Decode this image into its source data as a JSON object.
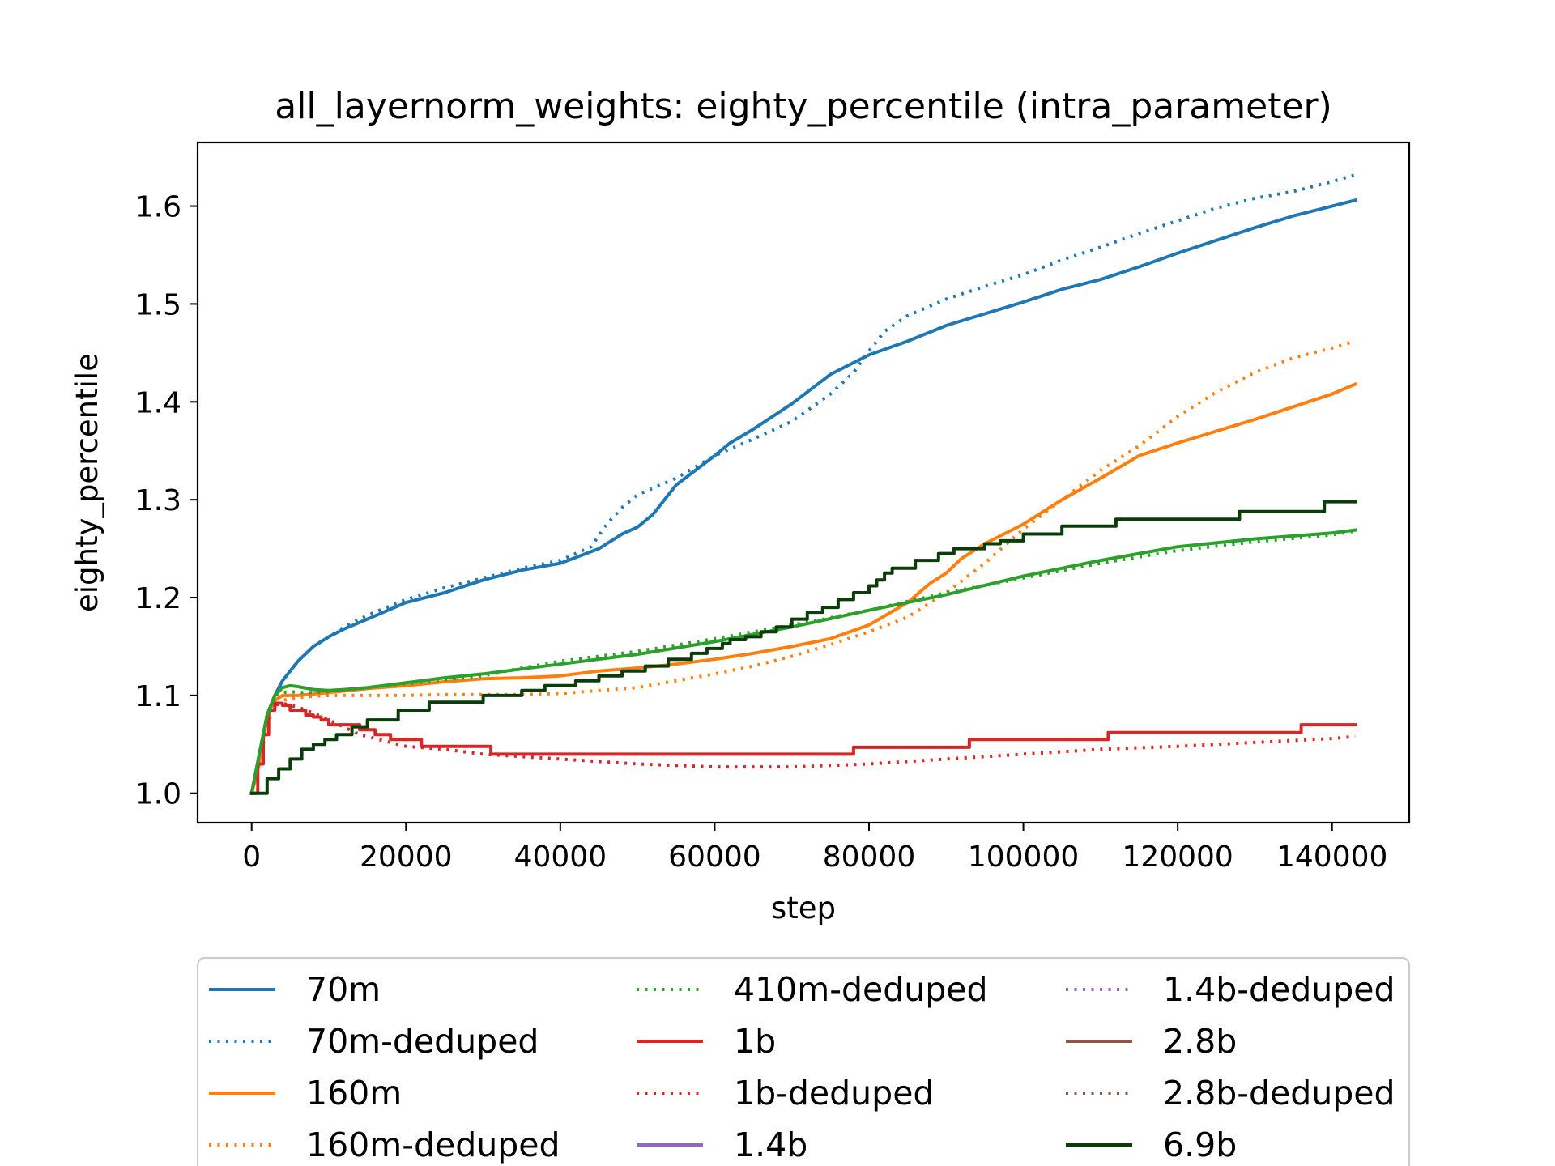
{
  "chart_data": {
    "type": "line",
    "title": "all_layernorm_weights: eighty_percentile (intra_parameter)",
    "xlabel": "step",
    "ylabel": "eighty_percentile",
    "xlim": [
      -7000,
      150000
    ],
    "ylim": [
      0.97,
      1.665
    ],
    "xticks": [
      0,
      20000,
      40000,
      60000,
      80000,
      100000,
      120000,
      140000
    ],
    "yticks": [
      1.0,
      1.1,
      1.2,
      1.3,
      1.4,
      1.5,
      1.6
    ],
    "ytick_labels": [
      "1.0",
      "1.1",
      "1.2",
      "1.3",
      "1.4",
      "1.5",
      "1.6"
    ],
    "grid": false,
    "legend_position": "bottom",
    "series": [
      {
        "name": "70m",
        "color": "#1f77b4",
        "style": "solid",
        "step": false,
        "x": [
          0,
          1000,
          2000,
          3000,
          4000,
          6000,
          8000,
          10000,
          12000,
          15000,
          20000,
          25000,
          30000,
          35000,
          40000,
          45000,
          48000,
          50000,
          52000,
          55000,
          60000,
          62000,
          65000,
          70000,
          75000,
          78000,
          80000,
          85000,
          90000,
          95000,
          100000,
          105000,
          110000,
          115000,
          120000,
          125000,
          130000,
          135000,
          140000,
          143000
        ],
        "y": [
          1.0,
          1.04,
          1.08,
          1.1,
          1.115,
          1.135,
          1.15,
          1.16,
          1.168,
          1.178,
          1.195,
          1.205,
          1.218,
          1.228,
          1.235,
          1.25,
          1.265,
          1.272,
          1.285,
          1.315,
          1.345,
          1.358,
          1.372,
          1.398,
          1.428,
          1.44,
          1.448,
          1.462,
          1.478,
          1.49,
          1.502,
          1.515,
          1.525,
          1.538,
          1.552,
          1.565,
          1.578,
          1.59,
          1.6,
          1.606
        ]
      },
      {
        "name": "70m-deduped",
        "color": "#1f77b4",
        "style": "dotted",
        "step": false,
        "x": [
          0,
          1000,
          2000,
          3000,
          4000,
          6000,
          8000,
          10000,
          12000,
          15000,
          20000,
          25000,
          30000,
          35000,
          40000,
          44000,
          46000,
          48000,
          50000,
          55000,
          60000,
          65000,
          70000,
          75000,
          78000,
          80000,
          82000,
          85000,
          90000,
          95000,
          100000,
          105000,
          110000,
          115000,
          120000,
          125000,
          130000,
          135000,
          140000,
          143000
        ],
        "y": [
          1.0,
          1.04,
          1.08,
          1.1,
          1.115,
          1.135,
          1.15,
          1.16,
          1.17,
          1.182,
          1.198,
          1.21,
          1.22,
          1.23,
          1.238,
          1.252,
          1.275,
          1.292,
          1.305,
          1.322,
          1.345,
          1.362,
          1.38,
          1.408,
          1.43,
          1.452,
          1.472,
          1.488,
          1.505,
          1.518,
          1.53,
          1.545,
          1.558,
          1.572,
          1.585,
          1.598,
          1.608,
          1.615,
          1.625,
          1.632
        ]
      },
      {
        "name": "160m",
        "color": "#ff7f0e",
        "style": "solid",
        "step": false,
        "x": [
          0,
          1000,
          2000,
          3000,
          4000,
          6000,
          10000,
          15000,
          20000,
          25000,
          30000,
          35000,
          40000,
          45000,
          50000,
          55000,
          60000,
          65000,
          70000,
          75000,
          80000,
          85000,
          88000,
          90000,
          92000,
          95000,
          100000,
          103000,
          105000,
          110000,
          115000,
          120000,
          125000,
          130000,
          135000,
          140000,
          143000
        ],
        "y": [
          1.0,
          1.03,
          1.08,
          1.095,
          1.1,
          1.1,
          1.103,
          1.107,
          1.11,
          1.114,
          1.117,
          1.118,
          1.12,
          1.125,
          1.128,
          1.132,
          1.137,
          1.143,
          1.15,
          1.158,
          1.172,
          1.195,
          1.215,
          1.225,
          1.24,
          1.255,
          1.275,
          1.29,
          1.3,
          1.322,
          1.345,
          1.358,
          1.37,
          1.382,
          1.395,
          1.408,
          1.418
        ]
      },
      {
        "name": "160m-deduped",
        "color": "#ff7f0e",
        "style": "dotted",
        "step": false,
        "x": [
          0,
          1000,
          2000,
          3000,
          4000,
          6000,
          10000,
          15000,
          20000,
          25000,
          30000,
          35000,
          40000,
          45000,
          50000,
          55000,
          60000,
          65000,
          70000,
          75000,
          80000,
          85000,
          90000,
          95000,
          100000,
          105000,
          110000,
          115000,
          120000,
          125000,
          130000,
          135000,
          140000,
          143000
        ],
        "y": [
          1.0,
          1.03,
          1.07,
          1.09,
          1.095,
          1.098,
          1.1,
          1.1,
          1.1,
          1.101,
          1.101,
          1.101,
          1.102,
          1.105,
          1.108,
          1.115,
          1.122,
          1.13,
          1.14,
          1.152,
          1.165,
          1.18,
          1.205,
          1.235,
          1.27,
          1.3,
          1.33,
          1.355,
          1.385,
          1.41,
          1.43,
          1.445,
          1.455,
          1.462
        ]
      },
      {
        "name": "410m-deduped",
        "color": "#2ca02c",
        "style": "dotted",
        "step": false,
        "x": [
          0,
          1000,
          2000,
          3000,
          4000,
          5000,
          6000,
          8000,
          10000,
          15000,
          20000,
          25000,
          30000,
          35000,
          40000,
          45000,
          50000,
          60000,
          70000,
          80000,
          90000,
          100000,
          110000,
          120000,
          130000,
          140000,
          143000
        ],
        "y": [
          1.0,
          1.04,
          1.08,
          1.1,
          1.103,
          1.104,
          1.103,
          1.103,
          1.104,
          1.108,
          1.112,
          1.116,
          1.12,
          1.128,
          1.135,
          1.14,
          1.145,
          1.158,
          1.172,
          1.187,
          1.205,
          1.22,
          1.235,
          1.248,
          1.257,
          1.264,
          1.268
        ]
      },
      {
        "name": "1b",
        "color": "#d62728",
        "style": "solid",
        "step": true,
        "x": [
          0,
          800,
          1500,
          2200,
          3000,
          4000,
          5000,
          7000,
          8000,
          9000,
          10000,
          11000,
          12000,
          14000,
          16000,
          18000,
          22000,
          31000,
          60000,
          77000,
          78000,
          93000,
          110000,
          111000,
          135000,
          136000,
          143000
        ],
        "y": [
          1.0,
          1.03,
          1.06,
          1.085,
          1.092,
          1.09,
          1.085,
          1.08,
          1.078,
          1.075,
          1.07,
          1.07,
          1.07,
          1.065,
          1.06,
          1.055,
          1.048,
          1.04,
          1.04,
          1.04,
          1.047,
          1.055,
          1.055,
          1.062,
          1.062,
          1.07,
          1.07
        ]
      },
      {
        "name": "1b-deduped",
        "color": "#d62728",
        "style": "dotted",
        "step": false,
        "x": [
          0,
          1000,
          2000,
          3000,
          4000,
          6000,
          8000,
          10000,
          14000,
          18000,
          20000,
          25000,
          30000,
          40000,
          50000,
          60000,
          70000,
          80000,
          90000,
          100000,
          110000,
          120000,
          130000,
          140000,
          143000
        ],
        "y": [
          1.0,
          1.04,
          1.08,
          1.09,
          1.092,
          1.088,
          1.082,
          1.075,
          1.06,
          1.052,
          1.048,
          1.045,
          1.04,
          1.035,
          1.03,
          1.027,
          1.027,
          1.03,
          1.035,
          1.04,
          1.045,
          1.048,
          1.052,
          1.056,
          1.058
        ]
      },
      {
        "name": "1.4b",
        "color": "#9467bd",
        "style": "solid",
        "step": false,
        "x": [],
        "y": []
      },
      {
        "name": "1.4b-deduped",
        "color": "#9467bd",
        "style": "dotted",
        "step": false,
        "x": [],
        "y": []
      },
      {
        "name": "2.8b",
        "color": "#8c564b",
        "style": "solid",
        "step": false,
        "x": [],
        "y": []
      },
      {
        "name": "2.8b-deduped",
        "color": "#8c564b",
        "style": "dotted",
        "step": false,
        "x": [],
        "y": []
      },
      {
        "name": "410m",
        "color": "#2ca02c",
        "style": "solid",
        "step": false,
        "x": [
          0,
          1000,
          2000,
          3000,
          4000,
          5000,
          6000,
          8000,
          10000,
          12000,
          15000,
          20000,
          25000,
          30000,
          40000,
          50000,
          60000,
          70000,
          80000,
          90000,
          100000,
          110000,
          120000,
          130000,
          140000,
          143000
        ],
        "y": [
          1.0,
          1.04,
          1.08,
          1.1,
          1.108,
          1.11,
          1.109,
          1.106,
          1.105,
          1.106,
          1.108,
          1.113,
          1.118,
          1.122,
          1.132,
          1.142,
          1.155,
          1.17,
          1.187,
          1.203,
          1.222,
          1.238,
          1.252,
          1.26,
          1.266,
          1.269
        ],
        "legend_visible": false
      },
      {
        "name": "6.9b",
        "color": "#0b3d0b",
        "style": "solid",
        "step": true,
        "x": [
          0,
          1000,
          2000,
          3500,
          5000,
          6500,
          8000,
          9500,
          11000,
          13000,
          15000,
          19000,
          23000,
          30000,
          35000,
          38000,
          42000,
          45000,
          48000,
          51000,
          54000,
          57000,
          59000,
          61000,
          62000,
          64000,
          66000,
          68000,
          70000,
          72000,
          74000,
          76000,
          78000,
          80000,
          81000,
          82000,
          83000,
          86000,
          89000,
          91000,
          95000,
          97000,
          100000,
          105000,
          112000,
          127000,
          128000,
          138000,
          139000,
          143000
        ],
        "y": [
          1.0,
          1.0,
          1.015,
          1.025,
          1.035,
          1.045,
          1.05,
          1.055,
          1.06,
          1.068,
          1.075,
          1.085,
          1.093,
          1.1,
          1.105,
          1.11,
          1.115,
          1.12,
          1.125,
          1.13,
          1.137,
          1.143,
          1.148,
          1.153,
          1.157,
          1.16,
          1.165,
          1.17,
          1.178,
          1.185,
          1.19,
          1.198,
          1.205,
          1.212,
          1.218,
          1.225,
          1.23,
          1.238,
          1.245,
          1.25,
          1.255,
          1.258,
          1.265,
          1.273,
          1.28,
          1.28,
          1.288,
          1.288,
          1.298,
          1.298
        ]
      }
    ],
    "legend": [
      {
        "label": "70m",
        "color": "#1f77b4",
        "style": "solid"
      },
      {
        "label": "70m-deduped",
        "color": "#1f77b4",
        "style": "dotted"
      },
      {
        "label": "160m",
        "color": "#ff7f0e",
        "style": "solid"
      },
      {
        "label": "160m-deduped",
        "color": "#ff7f0e",
        "style": "dotted"
      },
      {
        "label": "410m-deduped",
        "color": "#2ca02c",
        "style": "dotted"
      },
      {
        "label": "1b",
        "color": "#d62728",
        "style": "solid"
      },
      {
        "label": "1b-deduped",
        "color": "#d62728",
        "style": "dotted"
      },
      {
        "label": "1.4b",
        "color": "#9467bd",
        "style": "solid"
      },
      {
        "label": "1.4b-deduped",
        "color": "#9467bd",
        "style": "dotted"
      },
      {
        "label": "2.8b",
        "color": "#8c564b",
        "style": "solid"
      },
      {
        "label": "2.8b-deduped",
        "color": "#8c564b",
        "style": "dotted"
      },
      {
        "label": "6.9b",
        "color": "#0b3d0b",
        "style": "solid"
      }
    ]
  }
}
